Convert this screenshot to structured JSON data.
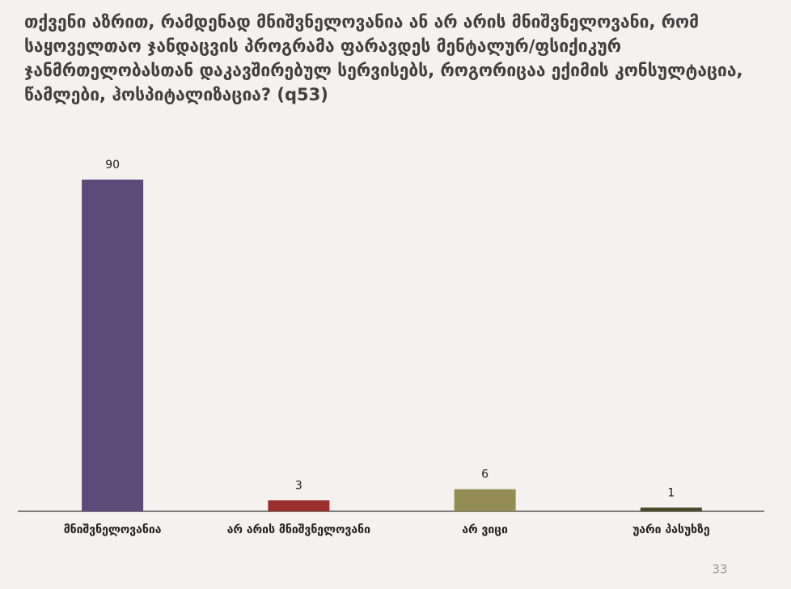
{
  "chart_data": {
    "type": "bar",
    "title": "თქვენი აზრით, რამდენად მნიშვნელოვანია ან არ არის მნიშვნელოვანი, რომ საყოველთაო ჯანდაცვის პროგრამა ფარავდეს მენტალურ/ფსიქიკურ ჯანმრთელობასთან დაკავშირებულ სერვისებს, როგორიცაა ექიმის კონსულტაცია, წამლები, ჰოსპიტალიზაცია? (q53)",
    "categories": [
      "მნიშვნელოვანია",
      "არ არის მნიშვნელოვანი",
      "არ ვიცი",
      "უარი პასუხზე"
    ],
    "values": [
      90,
      3,
      6,
      1
    ],
    "colors": [
      "#5c4a78",
      "#9b2f2e",
      "#938c55",
      "#4a4a2a"
    ]
  },
  "page_number": "33"
}
